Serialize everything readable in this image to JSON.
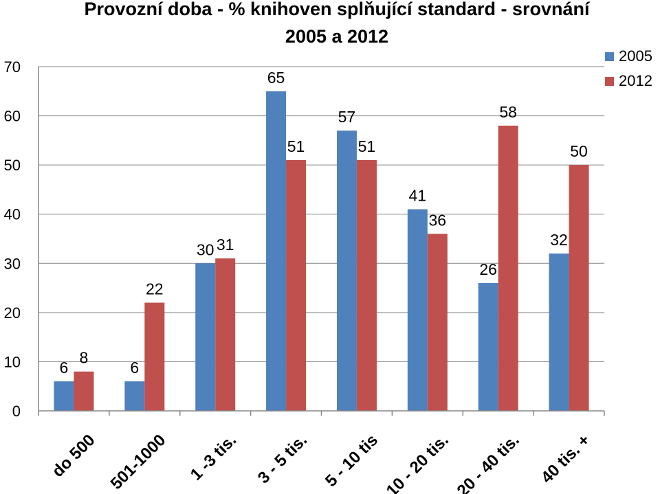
{
  "chart_data": {
    "type": "bar",
    "title": "Provozní doba - % knihoven splňující standard - srovnání",
    "subtitle": "2005 a 2012",
    "xlabel": "",
    "ylabel": "",
    "ylim": [
      0,
      70
    ],
    "yticks": [
      0,
      10,
      20,
      30,
      40,
      50,
      60,
      70
    ],
    "grid": true,
    "legend_position": "top-right",
    "categories": [
      "do 500",
      "501-1000",
      "1 -3 tis.",
      "3 - 5 tis.",
      "5 - 10 tis",
      "10 - 20 tis.",
      "20 - 40 tis.",
      "40 tis. +"
    ],
    "series": [
      {
        "name": "2005",
        "color": "#4f81bd",
        "values": [
          6,
          6,
          30,
          65,
          57,
          41,
          26,
          32
        ]
      },
      {
        "name": "2012",
        "color": "#c0504d",
        "values": [
          8,
          22,
          31,
          51,
          51,
          36,
          58,
          50
        ]
      }
    ]
  }
}
